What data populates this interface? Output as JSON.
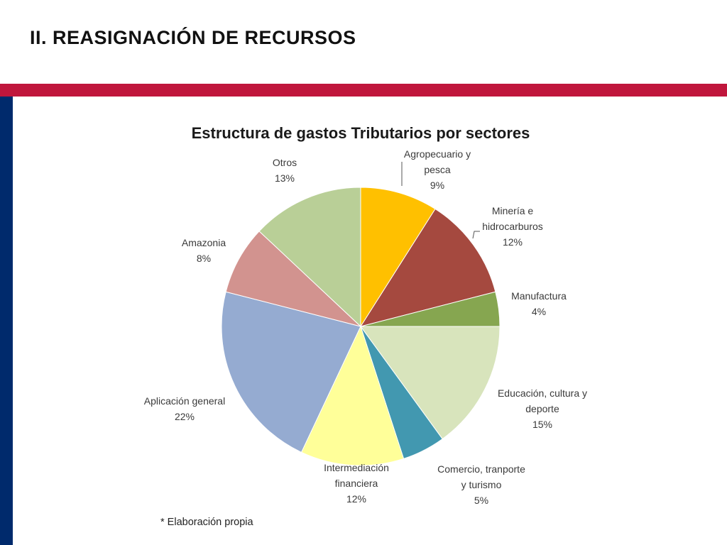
{
  "slide": {
    "title": "II. REASIGNACIÓN DE RECURSOS",
    "footnote": "* Elaboración propia"
  },
  "colors": {
    "red_band": "#c0163c",
    "blue_bar": "#002a6c"
  },
  "chart_data": {
    "type": "pie",
    "title": "Estructura de gastos Tributarios por sectores",
    "slices": [
      {
        "label_lines": [
          "Agropecuario y",
          "pesca"
        ],
        "value": 9,
        "value_label": "9%",
        "color": "#ffc000"
      },
      {
        "label_lines": [
          "Minería e",
          "hidrocarburos"
        ],
        "value": 12,
        "value_label": "12%",
        "color": "#a5493f"
      },
      {
        "label_lines": [
          "Manufactura"
        ],
        "value": 4,
        "value_label": "4%",
        "color": "#86a650"
      },
      {
        "label_lines": [
          "Educación, cultura y",
          "deporte"
        ],
        "value": 15,
        "value_label": "15%",
        "color": "#d8e4bc"
      },
      {
        "label_lines": [
          "Comercio, tranporte",
          "y turismo"
        ],
        "value": 5,
        "value_label": "5%",
        "color": "#4298b0"
      },
      {
        "label_lines": [
          "Intermediación",
          "financiera"
        ],
        "value": 12,
        "value_label": "12%",
        "color": "#ffff99"
      },
      {
        "label_lines": [
          "Aplicación general"
        ],
        "value": 22,
        "value_label": "22%",
        "color": "#95abd1"
      },
      {
        "label_lines": [
          "Amazonia"
        ],
        "value": 8,
        "value_label": "8%",
        "color": "#d2938f"
      },
      {
        "label_lines": [
          "Otros"
        ],
        "value": 13,
        "value_label": "13%",
        "color": "#b9cf97"
      }
    ]
  }
}
